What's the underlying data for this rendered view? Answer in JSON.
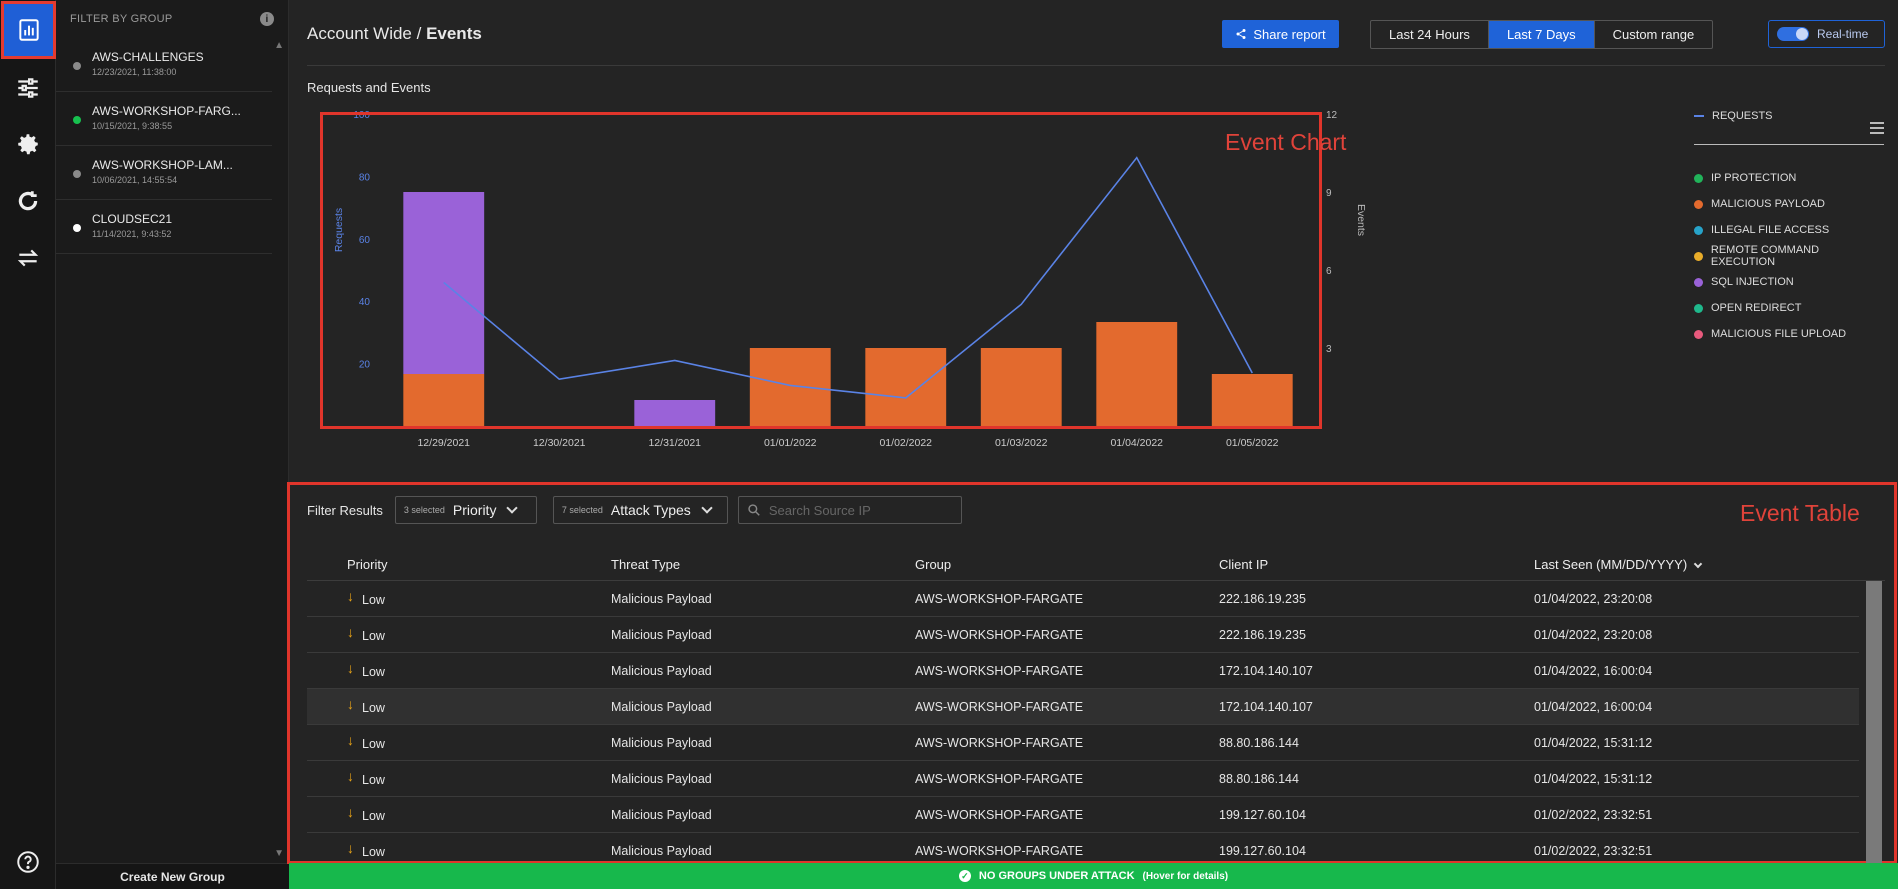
{
  "rail": {
    "items": [
      {
        "icon": "bar-chart-icon",
        "active": true
      },
      {
        "icon": "sliders-icon"
      },
      {
        "icon": "gear-icon"
      },
      {
        "icon": "refresh-circle-icon"
      },
      {
        "icon": "swap-arrows-icon"
      },
      {
        "icon": "help-icon"
      }
    ]
  },
  "groups": {
    "header": "FILTER BY GROUP",
    "create_label": "Create New Group",
    "items": [
      {
        "name": "AWS-CHALLENGES",
        "date": "12/23/2021, 11:38:00",
        "status_color": "#8a8a8a"
      },
      {
        "name": "AWS-WORKSHOP-FARG...",
        "date": "10/15/2021, 9:38:55",
        "status_color": "#17c14f"
      },
      {
        "name": "AWS-WORKSHOP-LAM...",
        "date": "10/06/2021, 14:55:54",
        "status_color": "#8a8a8a"
      },
      {
        "name": "CLOUDSEC21",
        "date": "11/14/2021, 9:43:52",
        "status_color": "#ffffff"
      }
    ]
  },
  "header": {
    "title_prefix": "Account Wide /",
    "title_page": "Events",
    "share_label": "Share report",
    "ranges": [
      "Last 24 Hours",
      "Last 7 Days",
      "Custom range"
    ],
    "active_range": "Last 7 Days",
    "realtime_label": "Real-time"
  },
  "chart_title": "Requests and Events",
  "annotations": {
    "chart_label": "Event Chart",
    "table_label": "Event Table"
  },
  "chart_data": {
    "type": "bar",
    "categories": [
      "12/29/2021",
      "12/30/2021",
      "12/31/2021",
      "01/01/2022",
      "01/02/2022",
      "01/03/2022",
      "01/04/2022",
      "01/05/2022"
    ],
    "series": [
      {
        "name": "MALICIOUS PAYLOAD",
        "type": "bar",
        "axis": "right",
        "color": "#e36a2e",
        "values": [
          2,
          0,
          0,
          3,
          3,
          3,
          4,
          2
        ]
      },
      {
        "name": "SQL INJECTION",
        "type": "bar",
        "axis": "right",
        "color": "#9a62d8",
        "values": [
          7,
          0,
          1,
          0,
          0,
          0,
          0,
          0
        ]
      },
      {
        "name": "REQUESTS",
        "type": "line",
        "axis": "left",
        "color": "#5a83e6",
        "values": [
          46,
          15,
          21,
          13,
          9,
          39,
          86,
          17
        ]
      }
    ],
    "ylabel": "Requests",
    "y2label": "Events",
    "ylim": [
      0,
      100
    ],
    "y2lim": [
      0,
      12
    ],
    "yticks": [
      20,
      40,
      60,
      80,
      100
    ],
    "y2ticks": [
      3,
      6,
      9,
      12
    ],
    "legend": [
      {
        "name": "REQUESTS",
        "color": "#5a83e6",
        "kind": "line"
      },
      {
        "name": "IP PROTECTION",
        "color": "#21b35a"
      },
      {
        "name": "MALICIOUS PAYLOAD",
        "color": "#e36a2e"
      },
      {
        "name": "ILLEGAL FILE ACCESS",
        "color": "#27a3c9"
      },
      {
        "name": "REMOTE COMMAND EXECUTION",
        "color": "#e9ad2a"
      },
      {
        "name": "SQL INJECTION",
        "color": "#9a62d8"
      },
      {
        "name": "OPEN REDIRECT",
        "color": "#1fb88c"
      },
      {
        "name": "MALICIOUS FILE UPLOAD",
        "color": "#e85a7d"
      }
    ],
    "legend_position": "right"
  },
  "filters": {
    "label": "Filter Results",
    "priority": {
      "count": "3 selected",
      "label": "Priority"
    },
    "attack_types": {
      "count": "7 selected",
      "label": "Attack Types"
    },
    "search_placeholder": "Search Source IP"
  },
  "table": {
    "columns": [
      "Priority",
      "Threat Type",
      "Group",
      "Client IP",
      "Last Seen (MM/DD/YYYY)"
    ],
    "rows": [
      {
        "priority": "Low",
        "threat": "Malicious Payload",
        "group": "AWS-WORKSHOP-FARGATE",
        "ip": "222.186.19.235",
        "seen": "01/04/2022, 23:20:08"
      },
      {
        "priority": "Low",
        "threat": "Malicious Payload",
        "group": "AWS-WORKSHOP-FARGATE",
        "ip": "222.186.19.235",
        "seen": "01/04/2022, 23:20:08"
      },
      {
        "priority": "Low",
        "threat": "Malicious Payload",
        "group": "AWS-WORKSHOP-FARGATE",
        "ip": "172.104.140.107",
        "seen": "01/04/2022, 16:00:04"
      },
      {
        "priority": "Low",
        "threat": "Malicious Payload",
        "group": "AWS-WORKSHOP-FARGATE",
        "ip": "172.104.140.107",
        "seen": "01/04/2022, 16:00:04"
      },
      {
        "priority": "Low",
        "threat": "Malicious Payload",
        "group": "AWS-WORKSHOP-FARGATE",
        "ip": "88.80.186.144",
        "seen": "01/04/2022, 15:31:12"
      },
      {
        "priority": "Low",
        "threat": "Malicious Payload",
        "group": "AWS-WORKSHOP-FARGATE",
        "ip": "88.80.186.144",
        "seen": "01/04/2022, 15:31:12"
      },
      {
        "priority": "Low",
        "threat": "Malicious Payload",
        "group": "AWS-WORKSHOP-FARGATE",
        "ip": "199.127.60.104",
        "seen": "01/02/2022, 23:32:51"
      },
      {
        "priority": "Low",
        "threat": "Malicious Payload",
        "group": "AWS-WORKSHOP-FARGATE",
        "ip": "199.127.60.104",
        "seen": "01/02/2022, 23:32:51"
      }
    ]
  },
  "status": {
    "main": "NO GROUPS UNDER ATTACK",
    "hint": "(Hover for details)"
  }
}
